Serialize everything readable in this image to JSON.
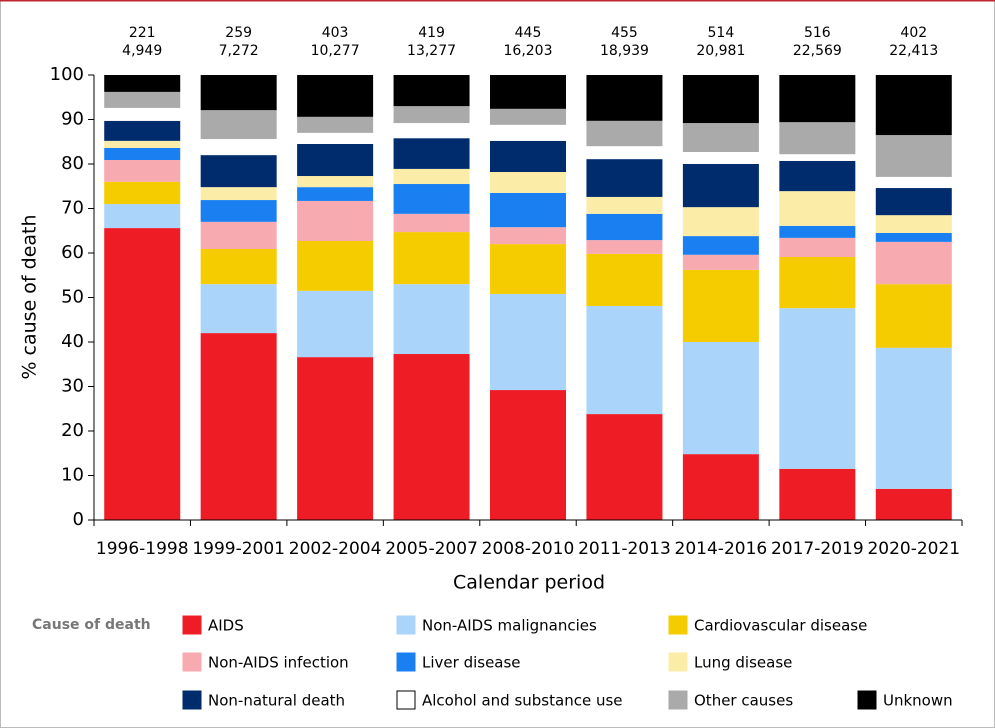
{
  "chart_data": {
    "type": "stacked-bar",
    "y_label": "% cause of death",
    "x_label": "Calendar period",
    "legend_title": "Cause of death",
    "categories": [
      "1996-1998",
      "1999-2001",
      "2002-2004",
      "2005-2007",
      "2008-2010",
      "2011-2013",
      "2014-2016",
      "2017-2019",
      "2020-2021"
    ],
    "top_labels": [
      [
        "221",
        "4,949"
      ],
      [
        "259",
        "7,272"
      ],
      [
        "403",
        "10,277"
      ],
      [
        "419",
        "13,277"
      ],
      [
        "445",
        "16,203"
      ],
      [
        "455",
        "18,939"
      ],
      [
        "514",
        "20,981"
      ],
      [
        "516",
        "22,569"
      ],
      [
        "402",
        "22,413"
      ]
    ],
    "ylim": [
      0,
      100
    ],
    "yticks": [
      0,
      10,
      20,
      30,
      40,
      50,
      60,
      70,
      80,
      90,
      100
    ],
    "series": [
      {
        "name": "AIDS",
        "color": "#ee1c25",
        "values": [
          65.6,
          42.0,
          36.6,
          37.3,
          29.2,
          23.8,
          14.8,
          11.5,
          7.0
        ]
      },
      {
        "name": "Non-AIDS malignancies",
        "color": "#aad4fa",
        "values": [
          5.4,
          11.0,
          14.9,
          15.7,
          21.6,
          24.3,
          25.2,
          36.1,
          31.7
        ]
      },
      {
        "name": "Cardiovascular disease",
        "color": "#f5cc00",
        "values": [
          5.0,
          7.9,
          11.2,
          11.7,
          11.2,
          11.7,
          16.2,
          11.5,
          14.3
        ]
      },
      {
        "name": "Non-AIDS infection",
        "color": "#f7aaaf",
        "values": [
          4.9,
          6.1,
          9.0,
          4.1,
          3.8,
          3.1,
          3.4,
          4.3,
          9.5
        ]
      },
      {
        "name": "Liver disease",
        "color": "#1a7ff0",
        "values": [
          2.7,
          4.9,
          3.1,
          6.7,
          7.7,
          5.9,
          4.2,
          2.7,
          2.0
        ]
      },
      {
        "name": "Lung disease",
        "color": "#fbeca7",
        "values": [
          1.6,
          2.9,
          2.5,
          3.4,
          4.7,
          3.8,
          6.5,
          7.8,
          4.0
        ]
      },
      {
        "name": "Non-natural death",
        "color": "#002c6e",
        "values": [
          4.5,
          7.2,
          7.2,
          6.9,
          7.0,
          8.5,
          9.7,
          6.8,
          6.1
        ]
      },
      {
        "name": "Alcohol and substance use",
        "color": "#ffffff",
        "values": [
          2.9,
          3.6,
          2.5,
          3.4,
          3.6,
          2.9,
          2.7,
          1.5,
          2.5
        ]
      },
      {
        "name": "Other causes",
        "color": "#aaaaaa",
        "values": [
          3.6,
          6.5,
          3.6,
          3.8,
          3.6,
          5.7,
          6.5,
          7.2,
          9.4
        ]
      },
      {
        "name": "Unknown",
        "color": "#000000",
        "values": [
          3.8,
          7.9,
          9.4,
          7.0,
          7.6,
          10.3,
          10.8,
          10.6,
          13.5
        ]
      }
    ]
  }
}
